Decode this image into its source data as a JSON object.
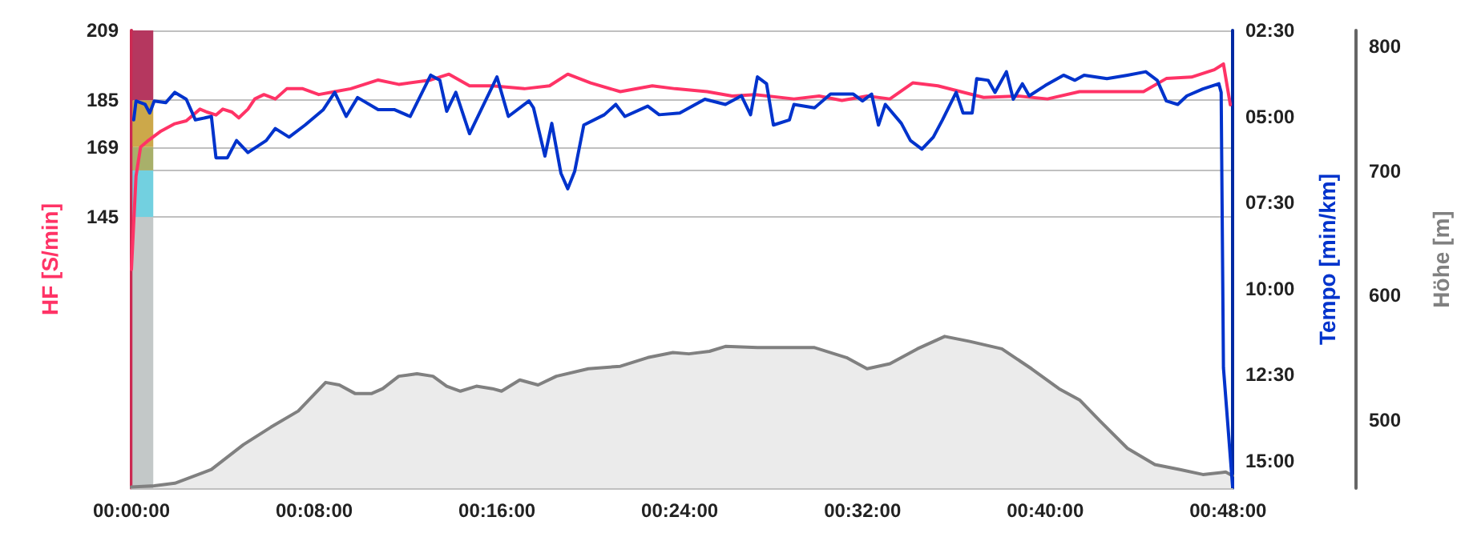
{
  "chart_data": {
    "type": "line",
    "ylabel": "HF [S/min]",
    "y2label": "Tempo [min/km]",
    "y3label": "Höhe [m]",
    "xlim": [
      0,
      48.2
    ],
    "xticks": [
      {
        "value": 0,
        "label": "00:00:00"
      },
      {
        "value": 8,
        "label": "00:08:00"
      },
      {
        "value": 16,
        "label": "00:16:00"
      },
      {
        "value": 24,
        "label": "00:24:00"
      },
      {
        "value": 32,
        "label": "00:32:00"
      },
      {
        "value": 40,
        "label": "00:40:00"
      },
      {
        "value": 48,
        "label": "00:48:00"
      }
    ],
    "ylim": [
      52,
      209
    ],
    "yticks": [
      145,
      {
        "value": 161,
        "label": null
      },
      169,
      185,
      209
    ],
    "y2lim": [
      15.8,
      2.5
    ],
    "y2ticks": [
      {
        "value": 2.5,
        "label": "02:30"
      },
      {
        "value": 5,
        "label": "05:00"
      },
      {
        "value": 7.5,
        "label": "07:30"
      },
      {
        "value": 10,
        "label": "10:00"
      },
      {
        "value": 12.5,
        "label": "12:30"
      },
      {
        "value": 15,
        "label": "15:00"
      }
    ],
    "y3lim": [
      445,
      813
    ],
    "y3ticks": [
      500,
      600,
      700,
      800
    ],
    "grid": "y",
    "series": [
      {
        "type": "bar",
        "axis": "y",
        "color": "#b5375f",
        "x": [
          0.5
        ],
        "base": [
          185
        ],
        "values": [
          24
        ]
      },
      {
        "type": "bar",
        "axis": "y",
        "color": "#cca84a",
        "x": [
          0.5
        ],
        "base": [
          169
        ],
        "values": [
          16
        ]
      },
      {
        "type": "bar",
        "axis": "y",
        "color": "#a8b06a",
        "x": [
          0.5
        ],
        "base": [
          161
        ],
        "values": [
          8
        ]
      },
      {
        "type": "bar",
        "axis": "y",
        "color": "#72d0e0",
        "x": [
          0.5
        ],
        "base": [
          145
        ],
        "values": [
          16
        ]
      },
      {
        "type": "bar",
        "axis": "y",
        "color": "#c3c8c8",
        "x": [
          0.5
        ],
        "base": [
          52
        ],
        "values": [
          93
        ]
      },
      {
        "type": "area",
        "axis": "y3",
        "color": "#808080",
        "x": [
          0,
          1.0,
          1.9,
          3.5,
          4.9,
          6.1,
          7.3,
          8.5,
          9.1,
          9.8,
          10.5,
          11.0,
          11.7,
          12.5,
          13.2,
          13.8,
          14.4,
          15.1,
          15.8,
          16.2,
          17.0,
          17.8,
          18.6,
          20.0,
          21.4,
          22.6,
          23.7,
          24.4,
          25.3,
          26.0,
          27.4,
          28.5,
          29.9,
          31.3,
          32.2,
          33.2,
          34.4,
          35.6,
          36.7,
          38.1,
          39.4,
          40.6,
          41.5,
          42.4,
          43.6,
          44.8,
          45.9,
          46.9,
          47.9,
          48.2
        ],
        "values": [
          446,
          447,
          449,
          460,
          480,
          494,
          507,
          530,
          528,
          521,
          521,
          525,
          535,
          537,
          535,
          527,
          523,
          527,
          525,
          523,
          532,
          528,
          535,
          541,
          543,
          550,
          554,
          553,
          555,
          559,
          558,
          558,
          558,
          550,
          541,
          545,
          557,
          567,
          563,
          557,
          541,
          525,
          516,
          499,
          477,
          464,
          460,
          456,
          458,
          455
        ]
      },
      {
        "axis": "y",
        "color": "#ff3366",
        "x": [
          0,
          0.2,
          0.4,
          0.7,
          1.3,
          1.9,
          2.4,
          3.0,
          3.3,
          3.7,
          4.0,
          4.4,
          4.7,
          5.1,
          5.4,
          5.8,
          6.3,
          6.8,
          7.5,
          8.2,
          8.9,
          9.6,
          10.8,
          11.7,
          13.1,
          13.9,
          14.8,
          15.8,
          17.2,
          18.3,
          19.1,
          20.1,
          21.4,
          22.8,
          23.8,
          25.2,
          26.3,
          27.3,
          29.0,
          30.1,
          31.1,
          32.2,
          33.2,
          34.2,
          35.3,
          36.3,
          37.3,
          38.8,
          40.1,
          41.5,
          42.9,
          44.3,
          45.3,
          46.4,
          47.4,
          47.8,
          48.1
        ],
        "values": [
          127,
          159,
          169,
          171,
          174.5,
          177,
          178,
          182,
          181,
          180,
          182,
          181,
          179,
          182,
          185.5,
          187,
          185.5,
          189,
          189,
          187,
          188,
          189,
          192,
          190.5,
          192,
          194,
          190,
          190,
          189,
          190,
          194,
          191,
          188,
          190,
          189,
          188,
          186.5,
          187,
          185.5,
          186.5,
          185,
          186.5,
          185.5,
          191,
          190,
          188,
          186,
          186.5,
          185.5,
          188,
          188,
          188,
          192.5,
          193,
          195.5,
          197.5,
          183.5
        ]
      },
      {
        "axis": "y2",
        "color": "#0033cc",
        "x": [
          0.1,
          0.2,
          0.6,
          0.8,
          1.0,
          1.5,
          1.9,
          2.4,
          2.8,
          3.5,
          3.7,
          4.2,
          4.6,
          5.1,
          5.9,
          6.3,
          6.9,
          7.6,
          8.4,
          8.9,
          9.4,
          9.9,
          10.8,
          11.5,
          12.2,
          13.1,
          13.5,
          13.8,
          14.2,
          14.8,
          16.0,
          16.5,
          17.4,
          17.6,
          18.1,
          18.4,
          18.8,
          19.1,
          19.4,
          19.8,
          20.7,
          21.2,
          21.6,
          22.6,
          23.1,
          24.0,
          25.1,
          26.0,
          26.7,
          27.1,
          27.4,
          27.8,
          28.1,
          28.8,
          29.0,
          29.9,
          30.6,
          31.6,
          32.0,
          32.4,
          32.7,
          33.0,
          33.7,
          34.1,
          34.6,
          35.1,
          35.5,
          36.1,
          36.4,
          36.8,
          37.0,
          37.5,
          37.8,
          38.3,
          38.6,
          39.0,
          39.3,
          40.0,
          40.8,
          41.3,
          41.7,
          42.7,
          43.6,
          44.4,
          44.9,
          45.3,
          45.8,
          46.2,
          46.9,
          47.6,
          47.7,
          47.8,
          48.2
        ],
        "values": [
          5.1,
          4.55,
          4.65,
          4.9,
          4.55,
          4.6,
          4.3,
          4.5,
          5.1,
          5.0,
          6.2,
          6.2,
          5.7,
          6.05,
          5.7,
          5.35,
          5.6,
          5.25,
          4.8,
          4.3,
          5.0,
          4.45,
          4.8,
          4.8,
          5.0,
          3.8,
          3.95,
          4.85,
          4.3,
          5.5,
          3.85,
          5.0,
          4.55,
          4.75,
          6.15,
          5.2,
          6.65,
          7.1,
          6.6,
          5.25,
          4.95,
          4.65,
          5.0,
          4.7,
          4.95,
          4.9,
          4.5,
          4.65,
          4.4,
          4.95,
          3.85,
          4.05,
          5.25,
          5.1,
          4.65,
          4.75,
          4.35,
          4.35,
          4.55,
          4.35,
          5.25,
          4.65,
          5.2,
          5.7,
          5.95,
          5.6,
          5.1,
          4.3,
          4.9,
          4.9,
          3.9,
          3.95,
          4.3,
          3.7,
          4.5,
          4.05,
          4.4,
          4.1,
          3.8,
          3.95,
          3.8,
          3.9,
          3.8,
          3.7,
          3.95,
          4.55,
          4.65,
          4.4,
          4.2,
          4.05,
          4.3,
          12.3,
          15.75
        ]
      }
    ]
  }
}
